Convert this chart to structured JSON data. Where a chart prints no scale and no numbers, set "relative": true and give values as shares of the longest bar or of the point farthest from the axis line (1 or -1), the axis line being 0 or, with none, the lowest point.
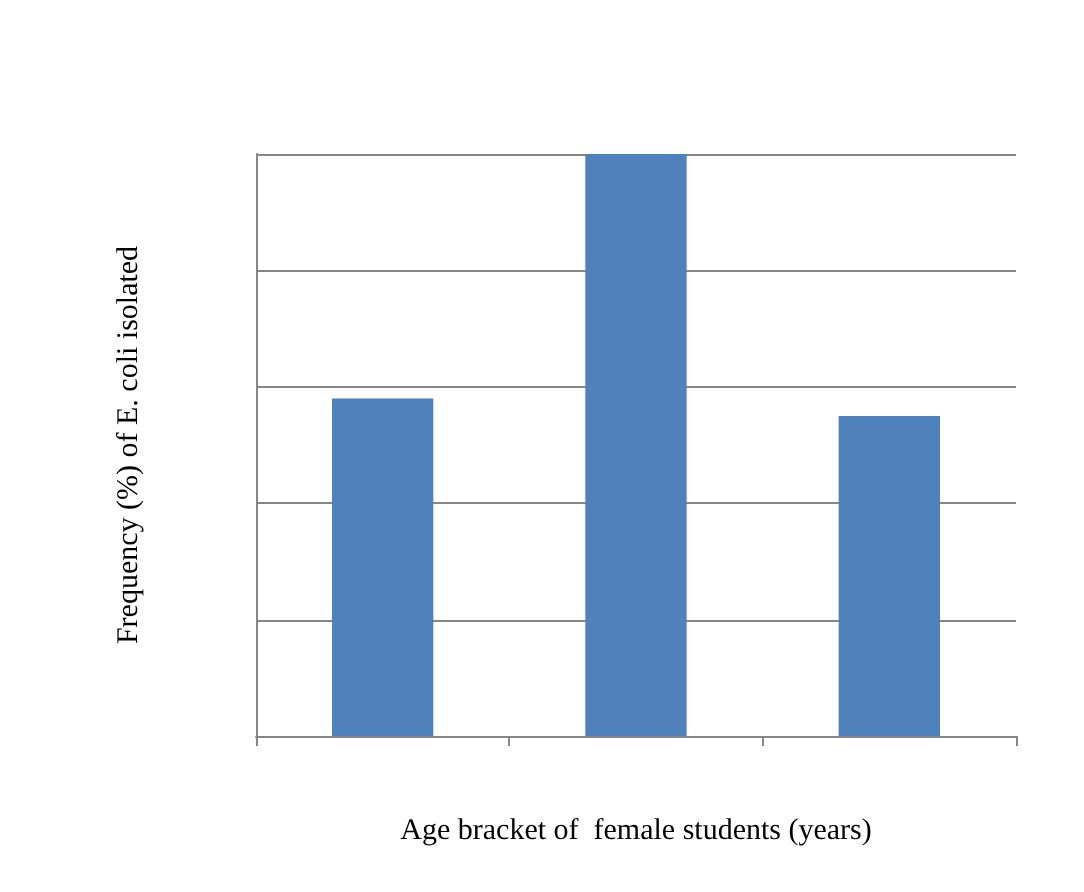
{
  "chart_data": {
    "type": "bar",
    "relative": true,
    "xlabel": "Age bracket of  female students (years)",
    "ylabel": "Frequency (%) of E. coli isolated",
    "categories": [
      null,
      null,
      null
    ],
    "values": [
      0.58,
      1,
      0.55
    ],
    "color": "#4f81bd",
    "grid": "y"
  }
}
